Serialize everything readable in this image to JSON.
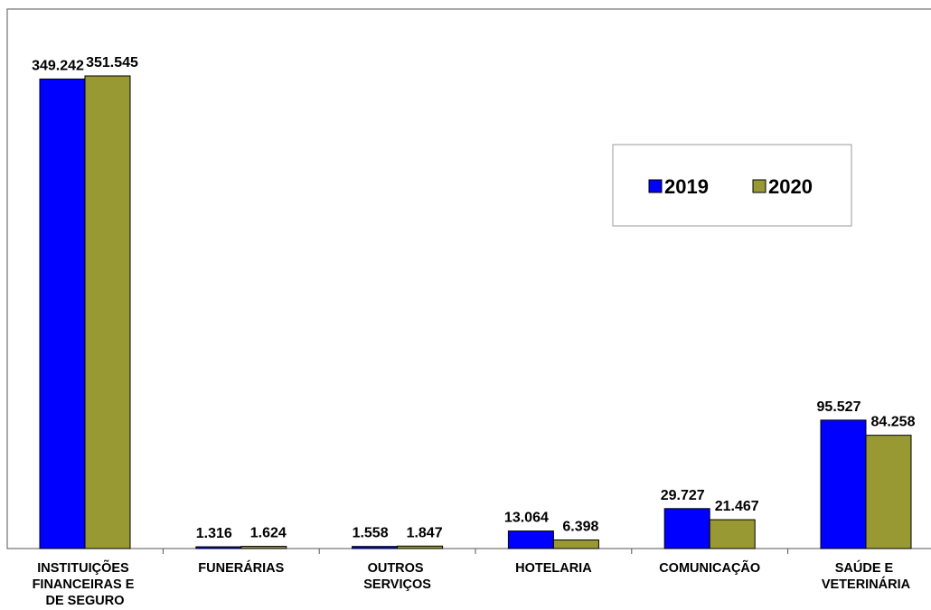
{
  "chart_data": {
    "type": "bar",
    "categories": [
      "INSTITUIÇÕES FINANCEIRAS E DE SEGURO",
      "FUNERÁRIAS",
      "OUTROS SERVIÇOS",
      "HOTELARIA",
      "COMUNICAÇÃO",
      "SAÚDE E VETERINÁRIA"
    ],
    "series": [
      {
        "name": "2019",
        "color": "#0000ff",
        "values": [
          349242,
          1316,
          1558,
          13064,
          29727,
          95527
        ],
        "value_labels": [
          "349.242",
          "1.316",
          "1.558",
          "13.064",
          "29.727",
          "95.527"
        ]
      },
      {
        "name": "2020",
        "color": "#999933",
        "values": [
          351545,
          1624,
          1847,
          6398,
          21467,
          84258
        ],
        "value_labels": [
          "351.545",
          "1.624",
          "1.847",
          "6.398",
          "21.467",
          "84.258"
        ]
      }
    ]
  }
}
